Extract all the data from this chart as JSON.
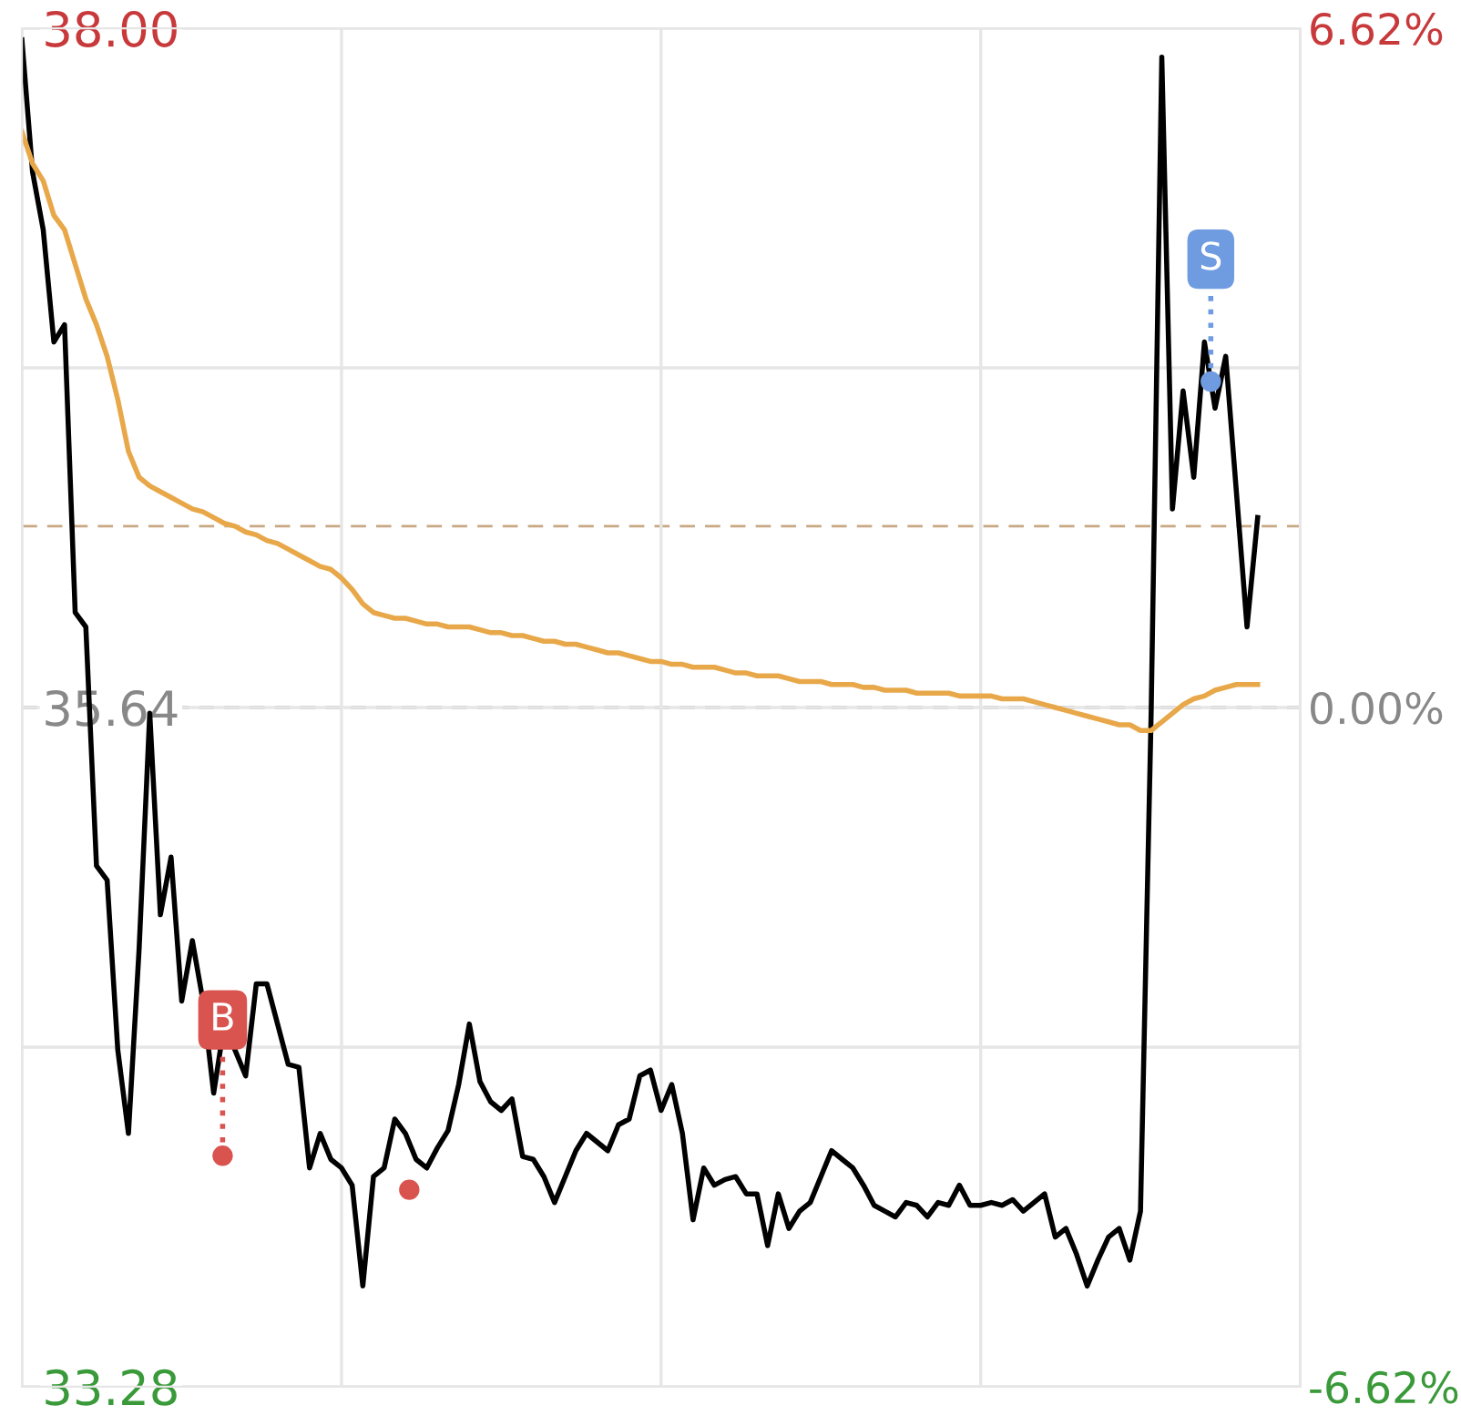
{
  "chart_data": {
    "type": "line",
    "categories": [
      null,
      null,
      null,
      null,
      null,
      null,
      null,
      null,
      null,
      null,
      null,
      null,
      null,
      null,
      null,
      null,
      null,
      null,
      null,
      null,
      null,
      null,
      null,
      null,
      null,
      null,
      null,
      null,
      null,
      null,
      null,
      null,
      null,
      null,
      null,
      null,
      null,
      null,
      null,
      null,
      null,
      null,
      null,
      null,
      null,
      null,
      null,
      null,
      null,
      null,
      null,
      null,
      null,
      null,
      null,
      null,
      null,
      null,
      null,
      null,
      null,
      null,
      null,
      null,
      null,
      null,
      null,
      null,
      null,
      null,
      null,
      null,
      null,
      null,
      null,
      null,
      null,
      null,
      null,
      null,
      null,
      null,
      null,
      null,
      null,
      null,
      null,
      null,
      null,
      null,
      null,
      null,
      null,
      null,
      null,
      null,
      null,
      null,
      null,
      null,
      null,
      null,
      null,
      null,
      null,
      null,
      null,
      null,
      null,
      null,
      null,
      null,
      null,
      null,
      null,
      null,
      null,
      null,
      null,
      null,
      null
    ],
    "series": [
      {
        "color": "#000000",
        "values": [
          37.96,
          37.5,
          37.3,
          36.91,
          36.97,
          35.97,
          35.92,
          35.09,
          35.04,
          34.45,
          34.16,
          34.8,
          35.62,
          34.92,
          35.12,
          34.62,
          34.83,
          34.62,
          34.3,
          34.54,
          34.45,
          34.36,
          34.68,
          34.68,
          34.54,
          34.4,
          34.39,
          34.04,
          34.16,
          34.07,
          34.04,
          33.98,
          33.63,
          34.01,
          34.04,
          34.21,
          34.16,
          34.07,
          34.04,
          34.11,
          34.17,
          34.33,
          34.54,
          34.34,
          34.27,
          34.24,
          34.28,
          34.08,
          34.07,
          34.01,
          33.92,
          34.01,
          34.1,
          34.16,
          34.13,
          34.1,
          34.19,
          34.21,
          34.36,
          34.38,
          34.24,
          34.33,
          34.16,
          33.86,
          34.04,
          33.98,
          34.0,
          34.01,
          33.95,
          33.95,
          33.77,
          33.95,
          33.83,
          33.89,
          33.92,
          34.01,
          34.1,
          34.07,
          34.04,
          33.98,
          33.91,
          33.89,
          33.87,
          33.92,
          33.91,
          33.87,
          33.92,
          33.91,
          33.98,
          33.91,
          33.91,
          33.92,
          33.91,
          33.93,
          33.89,
          33.92,
          33.95,
          33.8,
          33.83,
          33.74,
          33.63,
          33.72,
          33.8,
          33.83,
          33.72,
          33.89,
          35.62,
          37.9,
          36.33,
          36.74,
          36.44,
          36.91,
          36.68,
          36.86,
          36.39,
          35.92,
          36.3,
          null,
          null,
          null,
          null
        ]
      },
      {
        "color": "#e8a84a",
        "values": [
          37.64,
          37.53,
          37.47,
          37.35,
          37.3,
          37.18,
          37.06,
          36.97,
          36.86,
          36.71,
          36.53,
          36.44,
          36.41,
          36.39,
          36.37,
          36.35,
          36.33,
          36.32,
          36.3,
          36.28,
          36.27,
          36.25,
          36.24,
          36.22,
          36.21,
          36.19,
          36.17,
          36.15,
          36.13,
          36.12,
          36.09,
          36.05,
          36.0,
          35.97,
          35.96,
          35.95,
          35.95,
          35.94,
          35.93,
          35.93,
          35.92,
          35.92,
          35.92,
          35.91,
          35.9,
          35.9,
          35.89,
          35.89,
          35.88,
          35.87,
          35.87,
          35.86,
          35.86,
          35.85,
          35.84,
          35.83,
          35.83,
          35.82,
          35.81,
          35.8,
          35.8,
          35.79,
          35.79,
          35.78,
          35.78,
          35.78,
          35.77,
          35.76,
          35.76,
          35.75,
          35.75,
          35.75,
          35.74,
          35.73,
          35.73,
          35.73,
          35.72,
          35.72,
          35.72,
          35.71,
          35.71,
          35.7,
          35.7,
          35.7,
          35.69,
          35.69,
          35.69,
          35.69,
          35.68,
          35.68,
          35.68,
          35.68,
          35.67,
          35.67,
          35.67,
          35.66,
          35.65,
          35.64,
          35.63,
          35.62,
          35.61,
          35.6,
          35.59,
          35.58,
          35.58,
          35.56,
          35.56,
          35.59,
          35.62,
          35.65,
          35.67,
          35.68,
          35.7,
          35.71,
          35.72,
          35.72,
          35.72,
          null,
          null,
          null,
          null
        ]
      }
    ],
    "ylim": [
      33.28,
      38.0
    ],
    "yticks": [
      {
        "value": 38.0,
        "label": "38.00"
      },
      {
        "value": 36.82,
        "label": null
      },
      {
        "value": 35.64,
        "label": "35.64"
      },
      {
        "value": 34.46,
        "label": null
      },
      {
        "value": 33.28,
        "label": "33.28"
      }
    ],
    "y2lim": [
      -6.62,
      6.62
    ],
    "y2ticks": [
      {
        "value": 6.62,
        "label": "6.62%"
      },
      {
        "value": 0,
        "label": "0.00%"
      },
      {
        "value": -6.62,
        "label": "-6.62%"
      }
    ],
    "ref_lines": [
      {
        "axis": "y",
        "value": 35.64,
        "color": "#666666",
        "line_style": "dashed"
      },
      {
        "axis": "y",
        "value": 36.27,
        "color": "#c8a882",
        "line_style": "dashed"
      }
    ],
    "annotations": [
      "B",
      "S"
    ],
    "grid": true,
    "marker": "none",
    "legend": false
  }
}
